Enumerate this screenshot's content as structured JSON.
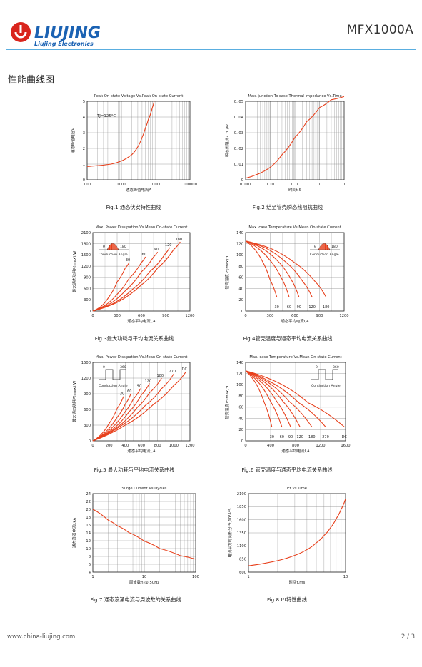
{
  "header": {
    "brand_name": "LIUJING",
    "brand_sub": "Liujing Electronics",
    "model": "MFX1000A",
    "accent_color": "#d9251d",
    "brand_blue": "#1b62b3"
  },
  "section_title": "性能曲线图",
  "figures": [
    {
      "id": "fig1",
      "title": "Peak On-state Voltage Vs.Peak On-state Current",
      "caption": "Fig.1 通态伏安特性曲线",
      "ylabel": "通态峰值电压V",
      "xlabel": "通态峰值电流A",
      "annotation": "TJ=125°C",
      "chart_data": {
        "type": "line",
        "xscale": "log",
        "xlim": [
          100,
          100000
        ],
        "ylim": [
          0,
          5
        ],
        "xticks": [
          "100",
          "1000",
          "10000",
          "100000"
        ],
        "yticks": [
          "0",
          "1",
          "2",
          "3",
          "4",
          "5"
        ],
        "series": [
          {
            "x": [
              100,
              200,
              500,
              1000,
              2000,
              3000,
              4000,
              5000,
              6000,
              8000,
              9000
            ],
            "y": [
              0.85,
              0.9,
              1.0,
              1.2,
              1.6,
              2.1,
              2.7,
              3.3,
              3.8,
              4.6,
              5.0
            ]
          }
        ]
      }
    },
    {
      "id": "fig2",
      "title": "Max. junction To case Thermal Impedance Vs.Time",
      "caption": "Fig.2 结至管壳瞬态热阻抗曲线",
      "ylabel": "瞬态热阻抗Z °C/W",
      "xlabel": "时间t,S",
      "chart_data": {
        "type": "line",
        "xscale": "log",
        "xlim": [
          0.001,
          10
        ],
        "ylim": [
          0,
          0.05
        ],
        "xticks": [
          "0. 001",
          "0. 01",
          "0. 1",
          "1",
          "10"
        ],
        "yticks": [
          "0",
          "0. 01",
          "0. 02",
          "0. 03",
          "0. 04",
          "0. 05"
        ],
        "series": [
          {
            "x": [
              0.001,
              0.003,
              0.01,
              0.03,
              0.1,
              0.3,
              1,
              3,
              10
            ],
            "y": [
              0.001,
              0.0035,
              0.008,
              0.016,
              0.027,
              0.037,
              0.046,
              0.051,
              0.053
            ]
          }
        ]
      }
    },
    {
      "id": "fig3",
      "title": "Max. Power Dissipation Vs.Mean On-state Current",
      "caption": "Fig.3最大功耗与平均电流关系曲线",
      "ylabel": "最大通态功耗P(max),W",
      "xlabel": "通态平均电流I,A",
      "inset_labels": [
        "θ",
        "180",
        "Conduction Angle"
      ],
      "chart_data": {
        "type": "line",
        "xlim": [
          0,
          1200
        ],
        "ylim": [
          0,
          2100
        ],
        "xticks": [
          "0",
          "300",
          "600",
          "900",
          "1200"
        ],
        "yticks": [
          "0",
          "300",
          "600",
          "900",
          "1200",
          "1500",
          "1800",
          "2100"
        ],
        "series": [
          {
            "name": "30",
            "x": [
              0,
              100,
              200,
              300,
              400,
              450
            ],
            "y": [
              0,
              120,
              380,
              780,
              1150,
              1300
            ]
          },
          {
            "name": "60",
            "x": [
              0,
              150,
              300,
              450,
              600,
              650
            ],
            "y": [
              0,
              150,
              450,
              880,
              1300,
              1450
            ]
          },
          {
            "name": "90",
            "x": [
              0,
              200,
              400,
              600,
              750,
              800
            ],
            "y": [
              0,
              180,
              540,
              1050,
              1450,
              1580
            ]
          },
          {
            "name": "120",
            "x": [
              0,
              250,
              500,
              700,
              900,
              950
            ],
            "y": [
              0,
              200,
              600,
              1050,
              1550,
              1700
            ]
          },
          {
            "name": "180",
            "x": [
              0,
              300,
              600,
              800,
              1000,
              1080
            ],
            "y": [
              0,
              230,
              700,
              1150,
              1650,
              1850
            ]
          }
        ]
      }
    },
    {
      "id": "fig4",
      "title": "Max. case Temperature Vs.Mean On-state Current",
      "caption": "Fig.4管壳温度与通态平均电流关系曲线",
      "ylabel": "管壳温度Tc(max)°C",
      "xlabel": "通态平均电流I,A",
      "inset_labels": [
        "θ",
        "180",
        "Conduction Angle"
      ],
      "chart_data": {
        "type": "line",
        "xlim": [
          0,
          1200
        ],
        "ylim": [
          0,
          140
        ],
        "xticks": [
          "0",
          "300",
          "600",
          "900",
          "1200"
        ],
        "yticks": [
          "0",
          "20",
          "40",
          "60",
          "80",
          "100",
          "120",
          "140"
        ],
        "series": [
          {
            "name": "30",
            "x": [
              0,
              100,
              200,
              300,
              380
            ],
            "y": [
              125,
              112,
              90,
              55,
              25
            ]
          },
          {
            "name": "60",
            "x": [
              0,
              150,
              300,
              450,
              530
            ],
            "y": [
              125,
              112,
              90,
              55,
              25
            ]
          },
          {
            "name": "90",
            "x": [
              0,
              200,
              400,
              560,
              650
            ],
            "y": [
              125,
              112,
              88,
              55,
              25
            ]
          },
          {
            "name": "120",
            "x": [
              0,
              250,
              500,
              700,
              810
            ],
            "y": [
              125,
              112,
              86,
              52,
              25
            ]
          },
          {
            "name": "180",
            "x": [
              0,
              300,
              600,
              850,
              980
            ],
            "y": [
              125,
              112,
              86,
              52,
              25
            ]
          }
        ],
        "curve_labels": [
          "30",
          "60",
          "90",
          "120",
          "180"
        ]
      }
    },
    {
      "id": "fig5",
      "title": "Max. Power Dissipation Vs.Mean On-state Current",
      "caption": "Fig.5 最大功耗与平均电流关系曲线",
      "ylabel": "最大通态功耗P(max),W",
      "xlabel": "通态平均电流I,A",
      "inset_labels": [
        "θ",
        "360",
        "Conduction Angle"
      ],
      "chart_data": {
        "type": "line",
        "xlim": [
          0,
          1200
        ],
        "ylim": [
          0,
          1500
        ],
        "xticks": [
          "0",
          "200",
          "400",
          "600",
          "800",
          "1000",
          "1200"
        ],
        "yticks": [
          "0",
          "300",
          "600",
          "900",
          "1200",
          "1500"
        ],
        "series": [
          {
            "name": "30",
            "x": [
              0,
              100,
              200,
              300,
              380
            ],
            "y": [
              0,
              120,
              330,
              620,
              850
            ]
          },
          {
            "name": "60",
            "x": [
              0,
              150,
              300,
              400,
              470
            ],
            "y": [
              0,
              160,
              450,
              700,
              900
            ]
          },
          {
            "name": "90",
            "x": [
              0,
              200,
              400,
              500,
              590
            ],
            "y": [
              0,
              200,
              560,
              800,
              1000
            ]
          },
          {
            "name": "120",
            "x": [
              0,
              250,
              450,
              600,
              700
            ],
            "y": [
              0,
              230,
              560,
              880,
              1100
            ]
          },
          {
            "name": "180",
            "x": [
              0,
              300,
              550,
              700,
              850
            ],
            "y": [
              0,
              260,
              640,
              920,
              1200
            ]
          },
          {
            "name": "270",
            "x": [
              0,
              350,
              650,
              850,
              1000
            ],
            "y": [
              0,
              290,
              680,
              1000,
              1280
            ]
          },
          {
            "name": "DC",
            "x": [
              0,
              400,
              750,
              1000,
              1150
            ],
            "y": [
              0,
              300,
              700,
              1060,
              1320
            ]
          }
        ]
      }
    },
    {
      "id": "fig6",
      "title": "Max. case Temperature Vs.Mean On-state Current",
      "caption": "Fig.6 管壳温度与通态平均电流关系曲线",
      "ylabel": "管壳温度Tc(max)°C",
      "xlabel": "通态平均电流I,A",
      "inset_labels": [
        "θ",
        "360",
        "Conduction Angle"
      ],
      "chart_data": {
        "type": "line",
        "xlim": [
          0,
          1600
        ],
        "ylim": [
          0,
          140
        ],
        "xticks": [
          "0",
          "400",
          "800",
          "1200",
          "1600"
        ],
        "yticks": [
          "0",
          "20",
          "40",
          "60",
          "80",
          "100",
          "120",
          "140"
        ],
        "series": [
          {
            "name": "30",
            "x": [
              0,
              150,
              300,
              420
            ],
            "y": [
              125,
              105,
              68,
              25
            ]
          },
          {
            "name": "60",
            "x": [
              0,
              200,
              400,
              580
            ],
            "y": [
              125,
              105,
              70,
              25
            ]
          },
          {
            "name": "90",
            "x": [
              0,
              250,
              500,
              720
            ],
            "y": [
              125,
              105,
              70,
              25
            ]
          },
          {
            "name": "120",
            "x": [
              0,
              300,
              600,
              870
            ],
            "y": [
              125,
              105,
              70,
              25
            ]
          },
          {
            "name": "180",
            "x": [
              0,
              350,
              700,
              1060
            ],
            "y": [
              125,
              105,
              70,
              25
            ]
          },
          {
            "name": "270",
            "x": [
              0,
              400,
              850,
              1280
            ],
            "y": [
              125,
              105,
              68,
              25
            ]
          },
          {
            "name": "DC",
            "x": [
              0,
              500,
              1000,
              1580
            ],
            "y": [
              125,
              105,
              68,
              25
            ]
          }
        ],
        "curve_labels": [
          "30",
          "60",
          "90",
          "120",
          "180",
          "270",
          "DC"
        ]
      }
    },
    {
      "id": "fig7",
      "title": "Surge Current Vs.Dycles",
      "caption": "Fig.7 通态浪涌电流与周波数的关系曲线",
      "ylabel": "通态浪涌电流I,kA",
      "xlabel": "周波数n,@ 50Hz",
      "chart_data": {
        "type": "line",
        "xscale": "log",
        "xlim": [
          1,
          100
        ],
        "ylim": [
          4,
          24
        ],
        "xticks": [
          "1",
          "10",
          "100"
        ],
        "yticks": [
          "4",
          "6",
          "8",
          "10",
          "12",
          "14",
          "16",
          "18",
          "20",
          "22",
          "24"
        ],
        "series": [
          {
            "x": [
              1,
              2,
              3,
              5,
              10,
              20,
              50,
              100
            ],
            "y": [
              20,
              17.2,
              15.8,
              14.1,
              11.9,
              10.0,
              8.2,
              7.3
            ]
          }
        ]
      }
    },
    {
      "id": "fig8",
      "title": "I²t Vs.Time",
      "caption": "Fig.8 I²t特性曲线",
      "ylabel": "电流平方时间积分I²t,10³A²S",
      "xlabel": "时间t,ms",
      "chart_data": {
        "type": "line",
        "xscale": "log",
        "xlim": [
          1,
          10
        ],
        "ylim": [
          600,
          2100
        ],
        "xticks": [
          "1",
          "10"
        ],
        "yticks": [
          "600",
          "850",
          "1100",
          "1350",
          "1600",
          "1850",
          "2100"
        ],
        "series": [
          {
            "x": [
              1,
              2,
              3,
              4,
              5,
              6,
              7,
              8,
              9,
              10
            ],
            "y": [
              720,
              820,
              920,
              1030,
              1160,
              1300,
              1450,
              1620,
              1800,
              2000
            ]
          }
        ]
      }
    }
  ],
  "footer": {
    "website": "www.china-liujing.com",
    "page": "2 / 3"
  }
}
